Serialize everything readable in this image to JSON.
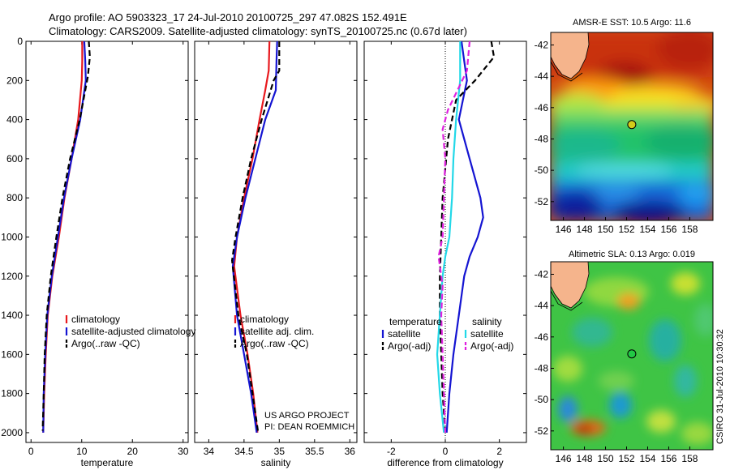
{
  "figure": {
    "title_line1": "Argo profile: AO 5903323_17 24-Jul-2010 20100725_297 47.082S 152.491E",
    "title_line2": "Climatology: CARS2009. Satellite-adjusted climatology: synTS_20100725.nc (0.67d later)",
    "credit_project": "US ARGO PROJECT",
    "credit_pi": "PI: DEAN ROEMMICH",
    "stamp": "CSIRO 31-Jul-2010 10:30:32"
  },
  "colors": {
    "climatology": "#e8191e",
    "satellite": "#1414d2",
    "argo": "#000000",
    "sat_salinity": "#22d8e8",
    "argo_salinity": "#e020e0",
    "land": "#f5b48c",
    "float_marker": "#d4cc1a"
  },
  "chart_data": [
    {
      "id": "temperature",
      "type": "line",
      "xlabel": "temperature",
      "ylabel": "",
      "xlim": [
        -1,
        31
      ],
      "ylim": [
        2050,
        0
      ],
      "xticks": [
        0,
        10,
        20,
        30
      ],
      "yticks": [
        0,
        200,
        400,
        600,
        800,
        1000,
        1200,
        1400,
        1600,
        1800,
        2000
      ],
      "legend": {
        "entries": [
          "climatology",
          "satellite-adjusted climatology",
          "Argo(..raw -QC)"
        ]
      },
      "series": [
        {
          "name": "climatology",
          "color": "#e8191e",
          "style": "solid",
          "points": [
            [
              10.1,
              0
            ],
            [
              10.1,
              100
            ],
            [
              10.0,
              200
            ],
            [
              9.3,
              400
            ],
            [
              8.0,
              600
            ],
            [
              6.6,
              800
            ],
            [
              5.5,
              1000
            ],
            [
              4.2,
              1200
            ],
            [
              3.3,
              1400
            ],
            [
              2.9,
              1600
            ],
            [
              2.6,
              1800
            ],
            [
              2.4,
              2000
            ]
          ]
        },
        {
          "name": "satellite-adjusted climatology",
          "color": "#1414d2",
          "style": "solid",
          "points": [
            [
              10.5,
              0
            ],
            [
              10.7,
              100
            ],
            [
              10.8,
              200
            ],
            [
              9.7,
              400
            ],
            [
              8.0,
              600
            ],
            [
              6.5,
              800
            ],
            [
              5.3,
              1000
            ],
            [
              4.1,
              1200
            ],
            [
              3.2,
              1400
            ],
            [
              2.8,
              1600
            ],
            [
              2.5,
              1800
            ],
            [
              2.4,
              2000
            ]
          ]
        },
        {
          "name": "Argo(..raw -QC)",
          "color": "#000000",
          "style": "dashed",
          "points": [
            [
              11.4,
              0
            ],
            [
              11.6,
              80
            ],
            [
              11.2,
              180
            ],
            [
              9.6,
              400
            ],
            [
              7.7,
              600
            ],
            [
              6.2,
              800
            ],
            [
              5.0,
              1000
            ],
            [
              3.9,
              1200
            ],
            [
              3.1,
              1400
            ],
            [
              2.7,
              1600
            ],
            [
              2.5,
              1800
            ],
            [
              2.3,
              1990
            ]
          ]
        }
      ]
    },
    {
      "id": "salinity",
      "type": "line",
      "xlabel": "salinity",
      "ylabel": "",
      "xlim": [
        33.8,
        36.1
      ],
      "ylim": [
        2050,
        0
      ],
      "xticks": [
        34,
        34.5,
        35,
        35.5,
        36
      ],
      "yticks": [
        0,
        200,
        400,
        600,
        800,
        1000,
        1200,
        1400,
        1600,
        1800,
        2000
      ],
      "legend": {
        "entries": [
          "climatology",
          "satellite adj. clim.",
          "Argo(..raw -QC)"
        ]
      },
      "series": [
        {
          "name": "climatology",
          "color": "#e8191e",
          "style": "solid",
          "points": [
            [
              34.86,
              0
            ],
            [
              34.85,
              150
            ],
            [
              34.8,
              250
            ],
            [
              34.72,
              400
            ],
            [
              34.62,
              600
            ],
            [
              34.5,
              800
            ],
            [
              34.4,
              1000
            ],
            [
              34.36,
              1150
            ],
            [
              34.45,
              1400
            ],
            [
              34.55,
              1600
            ],
            [
              34.63,
              1800
            ],
            [
              34.69,
              2000
            ]
          ]
        },
        {
          "name": "satellite adj. clim.",
          "color": "#1414d2",
          "style": "solid",
          "points": [
            [
              34.97,
              0
            ],
            [
              34.96,
              100
            ],
            [
              34.95,
              250
            ],
            [
              34.8,
              400
            ],
            [
              34.66,
              600
            ],
            [
              34.52,
              800
            ],
            [
              34.4,
              1000
            ],
            [
              34.34,
              1150
            ],
            [
              34.4,
              1400
            ],
            [
              34.5,
              1600
            ],
            [
              34.6,
              1800
            ],
            [
              34.68,
              2000
            ]
          ]
        },
        {
          "name": "Argo(..raw -QC)",
          "color": "#000000",
          "style": "dashed",
          "points": [
            [
              35.0,
              0
            ],
            [
              35.0,
              150
            ],
            [
              34.92,
              200
            ],
            [
              34.75,
              400
            ],
            [
              34.6,
              600
            ],
            [
              34.48,
              800
            ],
            [
              34.38,
              1000
            ],
            [
              34.33,
              1120
            ],
            [
              34.42,
              1400
            ],
            [
              34.54,
              1600
            ],
            [
              34.62,
              1800
            ],
            [
              34.7,
              2000
            ]
          ]
        }
      ]
    },
    {
      "id": "difference",
      "type": "line",
      "xlabel": "difference from climatology",
      "ylabel": "",
      "xlim": [
        -3,
        3
      ],
      "ylim": [
        2050,
        0
      ],
      "xticks": [
        -2,
        0,
        2
      ],
      "yticks": [
        0,
        200,
        400,
        600,
        800,
        1000,
        1200,
        1400,
        1600,
        1800,
        2000
      ],
      "legend": {
        "temperature_heading": "temperature",
        "salinity_heading": "salinity",
        "entries": [
          "satellite",
          "Argo(-adj)",
          "satellite",
          "Argo(-adj)"
        ]
      },
      "series": [
        {
          "name": "temperature satellite",
          "color": "#1414d2",
          "style": "solid",
          "points": [
            [
              0.6,
              0
            ],
            [
              0.7,
              100
            ],
            [
              0.8,
              200
            ],
            [
              0.5,
              400
            ],
            [
              0.9,
              600
            ],
            [
              1.3,
              800
            ],
            [
              1.4,
              900
            ],
            [
              1.2,
              1000
            ],
            [
              0.9,
              1100
            ],
            [
              0.7,
              1200
            ],
            [
              0.5,
              1400
            ],
            [
              0.3,
              1600
            ],
            [
              0.15,
              1800
            ],
            [
              0.05,
              2000
            ]
          ]
        },
        {
          "name": "temperature Argo(-adj)",
          "color": "#000000",
          "style": "dashed",
          "points": [
            [
              1.7,
              0
            ],
            [
              1.8,
              80
            ],
            [
              1.1,
              200
            ],
            [
              0.4,
              300
            ],
            [
              0.1,
              500
            ],
            [
              -0.1,
              800
            ],
            [
              -0.15,
              1000
            ],
            [
              -0.2,
              1200
            ],
            [
              -0.2,
              1400
            ],
            [
              -0.15,
              1600
            ],
            [
              -0.1,
              1800
            ],
            [
              0.0,
              2000
            ]
          ]
        },
        {
          "name": "salinity satellite",
          "color": "#22d8e8",
          "style": "solid",
          "points": [
            [
              0.55,
              0
            ],
            [
              0.55,
              200
            ],
            [
              0.4,
              400
            ],
            [
              0.3,
              600
            ],
            [
              0.25,
              800
            ],
            [
              0.15,
              1000
            ],
            [
              0.0,
              1100
            ],
            [
              -0.1,
              1200
            ],
            [
              -0.2,
              1400
            ],
            [
              -0.3,
              1600
            ],
            [
              -0.2,
              1800
            ],
            [
              -0.05,
              2000
            ]
          ]
        },
        {
          "name": "salinity Argo(-adj)",
          "color": "#e020e0",
          "style": "dashed",
          "points": [
            [
              0.9,
              0
            ],
            [
              0.8,
              150
            ],
            [
              0.45,
              250
            ],
            [
              0.1,
              350
            ],
            [
              -0.1,
              450
            ],
            [
              0.0,
              600
            ],
            [
              -0.05,
              800
            ],
            [
              -0.1,
              1000
            ],
            [
              -0.25,
              1100
            ],
            [
              -0.1,
              1250
            ],
            [
              -0.15,
              1400
            ],
            [
              -0.1,
              1600
            ],
            [
              -0.05,
              1800
            ],
            [
              0.0,
              2000
            ]
          ]
        }
      ]
    },
    {
      "id": "sst_map",
      "type": "heatmap",
      "title": "AMSR-E SST: 10.5 Argo: 11.6",
      "xlim": [
        144.8,
        160.2
      ],
      "ylim": [
        -53.2,
        -41.2
      ],
      "xticks": [
        146,
        148,
        150,
        152,
        154,
        156,
        158
      ],
      "yticks": [
        -42,
        -44,
        -46,
        -48,
        -50,
        -52
      ],
      "float_position": [
        152.491,
        -47.082
      ]
    },
    {
      "id": "sla_map",
      "type": "heatmap",
      "title": "Altimetric SLA: 0.13 Argo: 0.019",
      "xlim": [
        144.8,
        160.2
      ],
      "ylim": [
        -53.2,
        -41.2
      ],
      "xticks": [
        146,
        148,
        150,
        152,
        154,
        156,
        158
      ],
      "yticks": [
        -42,
        -44,
        -46,
        -48,
        -50,
        -52
      ],
      "float_position": [
        152.491,
        -47.082
      ]
    }
  ]
}
